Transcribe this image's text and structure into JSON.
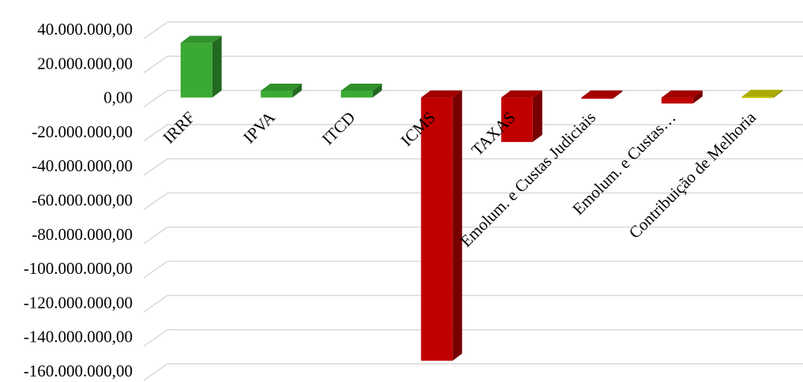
{
  "chart_data": {
    "type": "bar",
    "title": "",
    "xlabel": "",
    "ylabel": "",
    "ylim": [
      -160000000,
      40000000
    ],
    "ytick_step": 20000000,
    "grid": true,
    "y_tick_labels": [
      "40.000.000,00",
      "20.000.000,00",
      "0,00",
      "-20.000.000,00",
      "-40.000.000,00",
      "-60.000.000,00",
      "-80.000.000,00",
      "-100.000.000,00",
      "-120.000.000,00",
      "-140.000.000,00",
      "-160.000.000,00"
    ],
    "categories": [
      "IRRF",
      "IPVA",
      "ITCD",
      "ICMS",
      "TAXAS",
      "Emolum. e Custas Judiciais",
      "Emolum. e Custas…",
      "Contribuição de Melhoria"
    ],
    "values": [
      32000000,
      4000000,
      4000000,
      -154000000,
      -26000000,
      -500000,
      -3500000,
      400000
    ],
    "colors": [
      "#3aaa35",
      "#3aaa35",
      "#3aaa35",
      "#c00000",
      "#c00000",
      "#c00000",
      "#c00000",
      "#c8c800"
    ]
  }
}
